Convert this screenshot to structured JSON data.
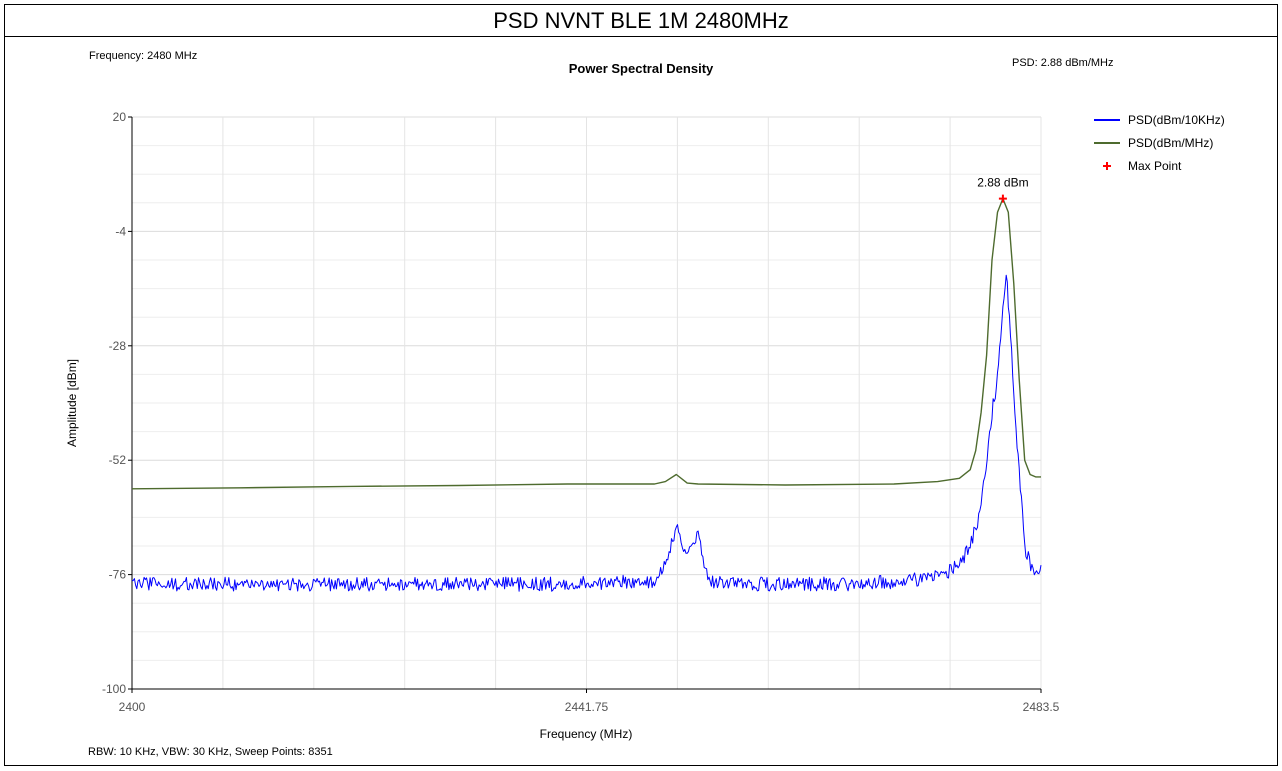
{
  "page": {
    "title": "PSD NVNT BLE 1M 2480MHz",
    "frequency_text": "Frequency: 2480 MHz",
    "psd_text": "PSD: 2.88 dBm/MHz",
    "settings_text": "RBW: 10 KHz,  VBW: 30 KHz,  Sweep Points: 8351"
  },
  "chart_data": {
    "type": "line",
    "title": "Power Spectral Density",
    "xlabel": "Frequency (MHz)",
    "ylabel": "Amplitude [dBm]",
    "xlim": [
      2400,
      2483.5
    ],
    "ylim": [
      -100,
      20
    ],
    "x_ticks": [
      "2400",
      "2441.75",
      "2483.5"
    ],
    "y_ticks": [
      "20",
      "-4",
      "-28",
      "-52",
      "-76",
      "-100"
    ],
    "grid": true,
    "legend_position": "right",
    "series": [
      {
        "name": "PSD(dBm/10KHz)",
        "color": "#0000ff",
        "x": [
          2400,
          2405,
          2410,
          2415,
          2420,
          2425,
          2430,
          2435,
          2440,
          2445,
          2448,
          2449,
          2450,
          2451,
          2452,
          2453,
          2455,
          2460,
          2465,
          2470,
          2474,
          2476,
          2477,
          2478,
          2479,
          2479.5,
          2480,
          2480.3,
          2480.7,
          2481,
          2481.5,
          2482,
          2483,
          2483.5
        ],
        "values": [
          -78,
          -78,
          -78,
          -78,
          -78,
          -78,
          -78,
          -78,
          -78,
          -77.5,
          -77.5,
          -73,
          -66,
          -72,
          -68,
          -77.5,
          -78,
          -78,
          -78,
          -77.5,
          -76.5,
          -74,
          -70,
          -62,
          -42,
          -35,
          -20,
          -12,
          -25,
          -38,
          -55,
          -70,
          -77,
          -74
        ]
      },
      {
        "name": "PSD(dBm/MHz)",
        "color": "#4e6b2e",
        "x": [
          2400,
          2410,
          2420,
          2430,
          2440,
          2448,
          2449,
          2450,
          2451,
          2452,
          2460,
          2470,
          2474,
          2476,
          2477,
          2477.5,
          2478,
          2478.5,
          2479,
          2479.5,
          2480,
          2480.5,
          2481,
          2481.5,
          2482,
          2482.5,
          2483,
          2483.5
        ],
        "values": [
          -58,
          -57.8,
          -57.5,
          -57.3,
          -57,
          -57,
          -56.5,
          -55,
          -56.8,
          -57,
          -57.2,
          -57,
          -56.5,
          -55.8,
          -54,
          -50,
          -42,
          -30,
          -10,
          0,
          2.88,
          0,
          -15,
          -35,
          -52,
          -55,
          -55.5,
          -55.5
        ]
      }
    ],
    "max_point": {
      "name": "Max Point",
      "x": 2480,
      "y": 2.88,
      "label": "2.88 dBm",
      "color": "#ff0000"
    }
  }
}
